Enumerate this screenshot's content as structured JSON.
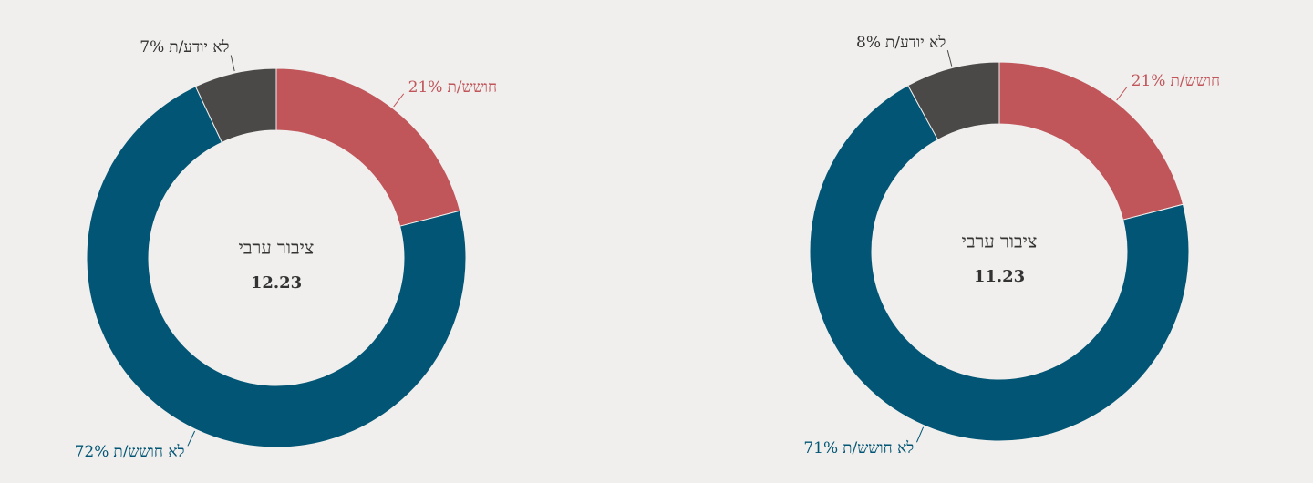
{
  "chart_data": [
    {
      "type": "pie",
      "title": "ציבור ערבי",
      "subtitle": "12.23",
      "categories": [
        "חושש/ת",
        "לא חושש/ת",
        "לא יודע/ת"
      ],
      "values": [
        21,
        72,
        7
      ],
      "value_labels": [
        "21%",
        "72%",
        "7%"
      ],
      "colors": [
        "#c0555a",
        "#025574",
        "#4a4948"
      ]
    },
    {
      "type": "pie",
      "title": "ציבור ערבי",
      "subtitle": "11.23",
      "categories": [
        "חושש/ת",
        "לא חושש/ת",
        "לא יודע/ת"
      ],
      "values": [
        21,
        71,
        8
      ],
      "value_labels": [
        "21%",
        "71%",
        "8%"
      ],
      "colors": [
        "#c0555a",
        "#025574",
        "#4a4948"
      ]
    }
  ]
}
